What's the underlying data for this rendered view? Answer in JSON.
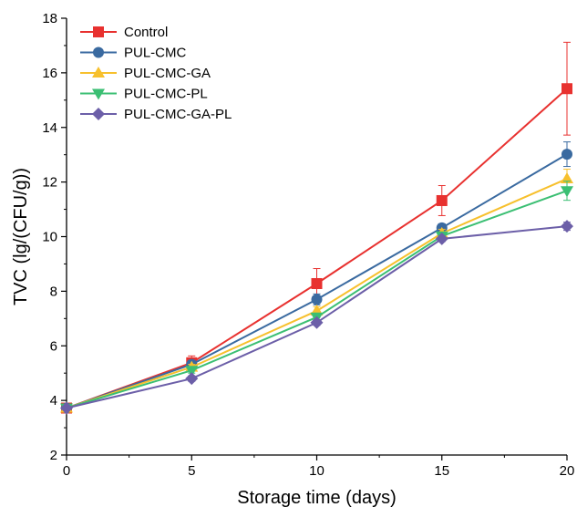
{
  "chart_data": {
    "type": "line",
    "xlabel": "Storage time (days)",
    "ylabel": "TVC (lg/(CFU/g))",
    "x": [
      0,
      5,
      10,
      15,
      20
    ],
    "xlim": [
      0,
      20
    ],
    "ylim": [
      2,
      18
    ],
    "xticks": [
      "0",
      "5",
      "10",
      "15",
      "20"
    ],
    "yticks": [
      "2",
      "4",
      "6",
      "8",
      "10",
      "12",
      "14",
      "16",
      "18"
    ],
    "grid": false,
    "legend_position": "top-left",
    "series": [
      {
        "name": "Control",
        "color": "#e8312f",
        "marker": "square",
        "values": [
          3.72,
          5.38,
          8.28,
          11.32,
          15.42
        ],
        "errors": [
          0.05,
          0.25,
          0.55,
          0.55,
          1.7
        ]
      },
      {
        "name": "PUL-CMC",
        "color": "#3a6aa0",
        "marker": "circle",
        "values": [
          3.72,
          5.32,
          7.7,
          10.32,
          13.02
        ],
        "errors": [
          0.05,
          0.15,
          0.2,
          0.15,
          0.45
        ]
      },
      {
        "name": "PUL-CMC-GA",
        "color": "#f7c02d",
        "marker": "triangle-up",
        "values": [
          3.72,
          5.22,
          7.28,
          10.12,
          12.12
        ],
        "errors": [
          0.05,
          0.1,
          0.15,
          0.15,
          0.35
        ]
      },
      {
        "name": "PUL-CMC-PL",
        "color": "#3bbf73",
        "marker": "triangle-down",
        "values": [
          3.72,
          5.1,
          7.05,
          10.02,
          11.68
        ],
        "errors": [
          0.05,
          0.1,
          0.15,
          0.15,
          0.35
        ]
      },
      {
        "name": "PUL-CMC-GA-PL",
        "color": "#6c5fa8",
        "marker": "diamond",
        "values": [
          3.72,
          4.8,
          6.85,
          9.92,
          10.38
        ],
        "errors": [
          0.05,
          0.1,
          0.1,
          0.1,
          0.15
        ]
      }
    ]
  }
}
